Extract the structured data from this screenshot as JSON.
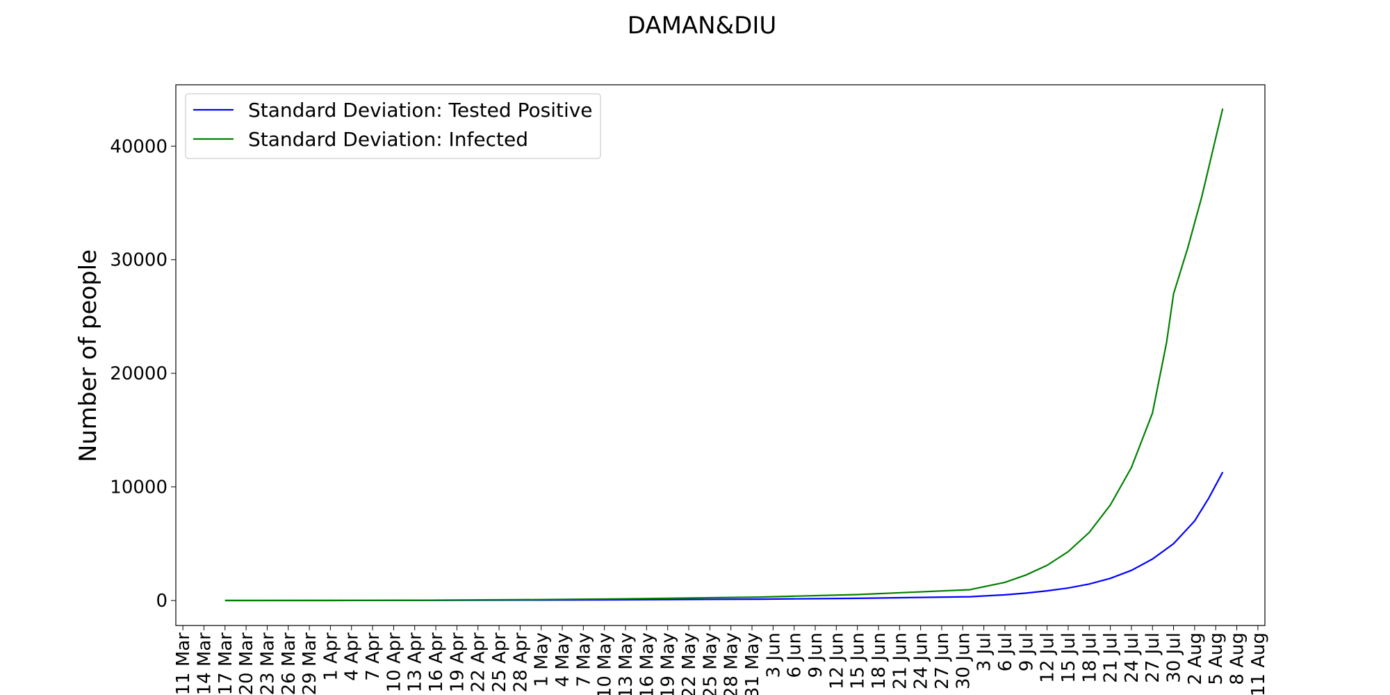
{
  "chart_data": {
    "type": "line",
    "title": "DAMAN&DIU",
    "xlabel": "",
    "ylabel": "Number of people",
    "xlim": [
      "2020-03-10",
      "2020-08-12"
    ],
    "ylim": [
      -2200,
      45400
    ],
    "x_ticks": [
      "11 Mar",
      "14 Mar",
      "17 Mar",
      "20 Mar",
      "23 Mar",
      "26 Mar",
      "29 Mar",
      "1 Apr",
      "4 Apr",
      "7 Apr",
      "10 Apr",
      "13 Apr",
      "16 Apr",
      "19 Apr",
      "22 Apr",
      "25 Apr",
      "28 Apr",
      "1 May",
      "4 May",
      "7 May",
      "10 May",
      "13 May",
      "16 May",
      "19 May",
      "22 May",
      "25 May",
      "28 May",
      "31 May",
      "3 Jun",
      "6 Jun",
      "9 Jun",
      "12 Jun",
      "15 Jun",
      "18 Jun",
      "21 Jun",
      "24 Jun",
      "27 Jun",
      "30 Jun",
      "3 Jul",
      "6 Jul",
      "9 Jul",
      "12 Jul",
      "15 Jul",
      "18 Jul",
      "21 Jul",
      "24 Jul",
      "27 Jul",
      "30 Jul",
      "2 Aug",
      "5 Aug",
      "8 Aug",
      "11 Aug"
    ],
    "y_ticks": [
      0,
      10000,
      20000,
      30000,
      40000
    ],
    "legend_position": "top-left",
    "grid": false,
    "series": [
      {
        "name": "Standard Deviation: Tested Positive",
        "color": "#0000ff",
        "points": [
          [
            "2020-03-17",
            0
          ],
          [
            "2020-04-01",
            5
          ],
          [
            "2020-04-15",
            15
          ],
          [
            "2020-05-01",
            40
          ],
          [
            "2020-05-15",
            70
          ],
          [
            "2020-06-01",
            120
          ],
          [
            "2020-06-15",
            190
          ],
          [
            "2020-07-01",
            330
          ],
          [
            "2020-07-06",
            500
          ],
          [
            "2020-07-09",
            650
          ],
          [
            "2020-07-12",
            850
          ],
          [
            "2020-07-15",
            1100
          ],
          [
            "2020-07-18",
            1450
          ],
          [
            "2020-07-21",
            1950
          ],
          [
            "2020-07-24",
            2650
          ],
          [
            "2020-07-27",
            3650
          ],
          [
            "2020-07-30",
            5000
          ],
          [
            "2020-08-02",
            7000
          ],
          [
            "2020-08-04",
            9000
          ],
          [
            "2020-08-06",
            11300
          ]
        ]
      },
      {
        "name": "Standard Deviation: Infected",
        "color": "#008000",
        "points": [
          [
            "2020-03-17",
            0
          ],
          [
            "2020-04-01",
            10
          ],
          [
            "2020-04-15",
            30
          ],
          [
            "2020-05-01",
            80
          ],
          [
            "2020-05-15",
            160
          ],
          [
            "2020-06-01",
            300
          ],
          [
            "2020-06-15",
            520
          ],
          [
            "2020-07-01",
            950
          ],
          [
            "2020-07-06",
            1600
          ],
          [
            "2020-07-09",
            2250
          ],
          [
            "2020-07-12",
            3100
          ],
          [
            "2020-07-15",
            4300
          ],
          [
            "2020-07-18",
            6000
          ],
          [
            "2020-07-21",
            8400
          ],
          [
            "2020-07-24",
            11700
          ],
          [
            "2020-07-27",
            16500
          ],
          [
            "2020-07-29",
            22700
          ],
          [
            "2020-07-30",
            27000
          ],
          [
            "2020-08-01",
            31000
          ],
          [
            "2020-08-03",
            35500
          ],
          [
            "2020-08-06",
            43300
          ]
        ]
      }
    ]
  }
}
